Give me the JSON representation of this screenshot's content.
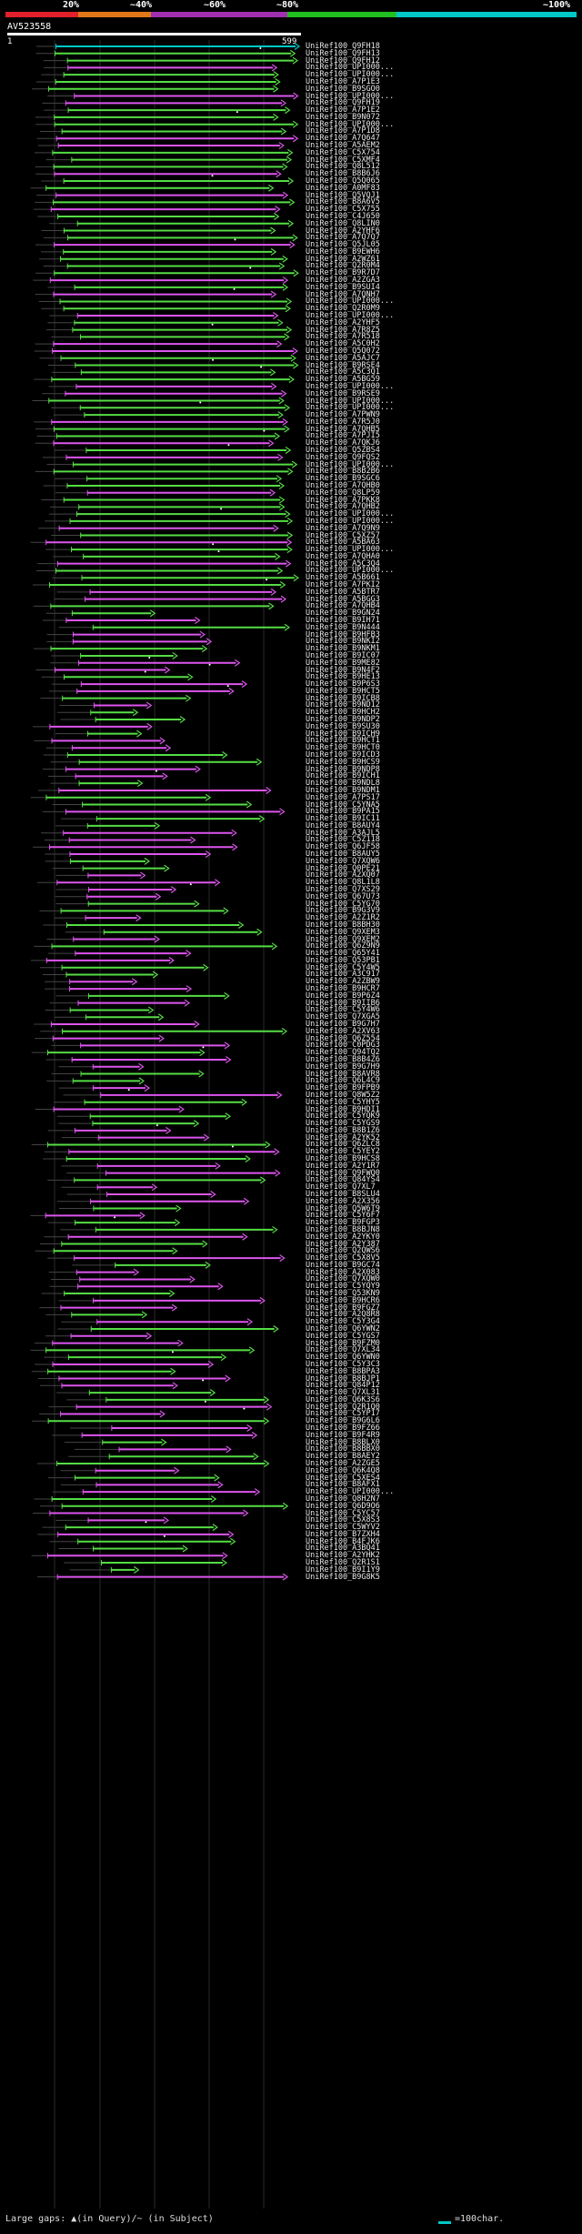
{
  "scale": {
    "labels": [
      "20%",
      "~40%",
      "~60%",
      "~80%",
      "~100%"
    ],
    "colors": {
      "c20": "#e0202a",
      "c40": "#e07818",
      "c60": "#a030b0",
      "c80": "#20c020",
      "c100": "#00c8c8"
    }
  },
  "query": {
    "name": "AV523558",
    "start": "1",
    "end": "599"
  },
  "hit_colors": {
    "green": "#55dd44",
    "magenta": "#dd55ee",
    "cyan": "#00c8c8",
    "gap": "#888888"
  },
  "hits": [
    "UniRef100_Q9FH18",
    "UniRef100_Q9FH13",
    "UniRef100_Q9FH12",
    "UniRef100_UPI000...",
    "UniRef100_UPI000...",
    "UniRef100_A7P1E3",
    "UniRef100_B9SGO0",
    "UniRef100_UPI000...",
    "UniRef100_Q9FH19",
    "UniRef100_A7P1E2",
    "UniRef100_B9N072",
    "UniRef100_UPI000...",
    "UniRef100_A7P1D8",
    "UniRef100_A7Q647",
    "UniRef100_A5AEM2",
    "UniRef100_C5X754",
    "UniRef100_C5XMF4",
    "UniRef100_Q8L512",
    "UniRef100_B8B6J6",
    "UniRef100_Q5Q065",
    "UniRef100_A0MF83",
    "UniRef100_Q5VQJ1",
    "UniRef100_B8A6V5",
    "UniRef100_C5X755",
    "UniRef100_C4J650",
    "UniRef100_Q8LIN0",
    "UniRef100_A2YHF6",
    "UniRef100_A7Q7Q7",
    "UniRef100_Q5JL05",
    "UniRef100_B9EWH6",
    "UniRef100_A2WZ61",
    "UniRef100_Q2R0M4",
    "UniRef100_B9R7D7",
    "UniRef100_A2ZGA3",
    "UniRef100_B9SUI4",
    "UniRef100_A7QNH7",
    "UniRef100_UPI000...",
    "UniRef100_Q2R0M9",
    "UniRef100_UPI000...",
    "UniRef100_A2YHF5",
    "UniRef100_A7R8Z5",
    "UniRef100_A7R518",
    "UniRef100_A5C0H2",
    "UniRef100_Q5Q072",
    "UniRef100_A5AJC7",
    "UniRef100_B9RSE4",
    "UniRef100_A5C3Q1",
    "UniRef100_A5BG59",
    "UniRef100_UPI000...",
    "UniRef100_B9RSE9",
    "UniRef100_UPI000...",
    "UniRef100_UPI000...",
    "UniRef100_A7PWN9",
    "UniRef100_A7R5J0",
    "UniRef100_A7QHB5",
    "UniRef100_A7PJI5",
    "UniRef100_A7QKJ6",
    "UniRef100_Q5ZBS4",
    "UniRef100_Q9FQS2",
    "UniRef100_UPI000...",
    "UniRef100_B8B2B6",
    "UniRef100_B9SGC6",
    "UniRef100_A7QHB0",
    "UniRef100_Q8LP59",
    "UniRef100_A7PKK8",
    "UniRef100_A7QHB2",
    "UniRef100_UPI000...",
    "UniRef100_UPI000...",
    "UniRef100_A7Q9N9",
    "UniRef100_C5XZ57",
    "UniRef100_A5BA63",
    "UniRef100_UPI000...",
    "UniRef100_A7QHA0",
    "UniRef100_A5C3Q4",
    "UniRef100_UPI000...",
    "UniRef100_A5B661",
    "UniRef100_A7PKI2",
    "UniRef100_A5BTR7",
    "UniRef100_A5BGG3",
    "UniRef100_A7QHB4",
    "UniRef100_B9GN24",
    "UniRef100_B9IH71",
    "UniRef100_B9N444",
    "UniRef100_B9HFB3",
    "UniRef100_B9NKI2",
    "UniRef100_B9NKM1",
    "UniRef100_B9IC07",
    "UniRef100_B9ME82",
    "UniRef100_B9N4F2",
    "UniRef100_B9HE13",
    "UniRef100_B9P6S3",
    "UniRef100_B9HCT5",
    "UniRef100_B9ICB8",
    "UniRef100_B9ND12",
    "UniRef100_B9HCH2",
    "UniRef100_B9NDP2",
    "UniRef100_B9SU30",
    "UniRef100_B9ICH9",
    "UniRef100_B9HCT1",
    "UniRef100_B9HCT0",
    "UniRef100_B9ICD3",
    "UniRef100_B9HCS9",
    "UniRef100_B9NDP8",
    "UniRef100_B9ICH1",
    "UniRef100_B9NDL8",
    "UniRef100_B9NDM1",
    "UniRef100_A7PS17",
    "UniRef100_C5YNA5",
    "UniRef100_B9PA15",
    "UniRef100_B9IC11",
    "UniRef100_B8AUY4",
    "UniRef100_A3AJL5",
    "UniRef100_C5Z118",
    "UniRef100_Q6JF58",
    "UniRef100_B8AUY5",
    "UniRef100_Q7XQW6",
    "UniRef100_Q0PE21",
    "UniRef100_A2XQ07",
    "UniRef100_Q8L1L8",
    "UniRef100_Q7XS29",
    "UniRef100_Q67U73",
    "UniRef100_C5YG70",
    "UniRef100_B9G3V9",
    "UniRef100_A2Z1R2",
    "UniRef100_B8BH30",
    "UniRef100_Q9XEM3",
    "UniRef100_Q9XEM2",
    "UniRef100_Q6Z9N9",
    "UniRef100_Q65Y41",
    "UniRef100_Q53PB1",
    "UniRef100_C5Y4W5",
    "UniRef100_A3C917",
    "UniRef100_A2ZBW9",
    "UniRef100_B9HCR7",
    "UniRef100_B9P6Z4",
    "UniRef100_B9IIB6",
    "UniRef100_C5Y4W6",
    "UniRef100_Q7XGA5",
    "UniRef100_B9G7H7",
    "UniRef100_A2XV63",
    "UniRef100_Q6Z554",
    "UniRef100_C0PDG3",
    "UniRef100_Q94TQ2",
    "UniRef100_B8B4Z6",
    "UniRef100_B9G7H9",
    "UniRef100_B8AVR8",
    "UniRef100_Q6L4C9",
    "UniRef100_B9FPB9",
    "UniRef100_Q8W5Z2",
    "UniRef100_C5YHY5",
    "UniRef100_B9HDI1",
    "UniRef100_C5YQK9",
    "UniRef100_C5YGS9",
    "UniRef100_B8B1Z6",
    "UniRef100_A2YK52",
    "UniRef100_Q6ZLC8",
    "UniRef100_C5YEY2",
    "UniRef100_B9HCS8",
    "UniRef100_A2Y1R7",
    "UniRef100_Q9FWQ0",
    "UniRef100_Q84YS4",
    "UniRef100_Q7XL7",
    "UniRef100_B8SLU4",
    "UniRef100_A2X356",
    "UniRef100_Q5W6T9",
    "UniRef100_C5Y6F7",
    "UniRef100_B9FGP3",
    "UniRef100_B8BJN8",
    "UniRef100_A2YKY0",
    "UniRef100_A2Y387",
    "UniRef100_Q2QWS6",
    "UniRef100_C5X8V5",
    "UniRef100_B9GC74",
    "UniRef100_A2X083",
    "UniRef100_Q7XQW0",
    "UniRef100_C5YQY9",
    "UniRef100_Q53KN9",
    "UniRef100_B9HCR6",
    "UniRef100_B9FGZ7",
    "UniRef100_A2Q8R8",
    "UniRef100_C5Y3G4",
    "UniRef100_Q6YWN2",
    "UniRef100_C5YGS7",
    "UniRef100_B9FZM0",
    "UniRef100_Q7XL34",
    "UniRef100_Q6YWN0",
    "UniRef100_C5Y3C3",
    "UniRef100_B8BPA3",
    "UniRef100_B8BJP1",
    "UniRef100_Q84P12",
    "UniRef100_Q7XL31",
    "UniRef100_Q6K3S6",
    "UniRef100_Q2R1Q0",
    "UniRef100_C5YP17",
    "UniRef100_B9G6L6",
    "UniRef100_B9FZ66",
    "UniRef100_B9F4R9",
    "UniRef100_B8BLX0",
    "UniRef100_B8BBX0",
    "UniRef100_B8AEY2",
    "UniRef100_A2ZGE5",
    "UniRef100_Q6K4Q8",
    "UniRef100_C5XES4",
    "UniRef100_B8AFX1",
    "UniRef100_UPI000...",
    "UniRef100_Q8H2N7",
    "UniRef100_Q6D9O6",
    "UniRef100_C5YC57",
    "UniRef100_C5X8S3",
    "UniRef100_C5WYV2",
    "UniRef100_B7ZXH4",
    "UniRef100_B4FJK6",
    "UniRef100_A3BQ41",
    "UniRef100_A2YHK2",
    "UniRef100_Q2R1S1",
    "UniRef100_B9I1Y9",
    "UniRef100_B9G8K5"
  ],
  "footer": {
    "gaps_text": "Large gaps: ▲(in Query)/~ (in Subject)",
    "legend_text": "=100char."
  }
}
